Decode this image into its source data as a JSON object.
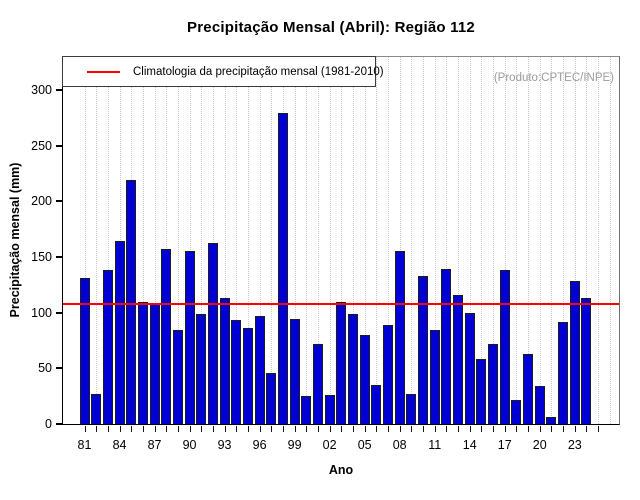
{
  "title": "Precipitação Mensal (Abril): Região 112",
  "watermark": "(Produto:CPTEC/INPE)",
  "legend": {
    "label": "Climatologia da precipitação mensal (1981-2010)",
    "line_color": "#ff0000"
  },
  "axes": {
    "x_label": "Ano",
    "y_label": "Precipitação mensal (mm)",
    "y_ticks": [
      0,
      50,
      100,
      150,
      200,
      250,
      300
    ],
    "x_tick_labels": [
      "81",
      "84",
      "87",
      "90",
      "93",
      "96",
      "99",
      "02",
      "05",
      "08",
      "11",
      "14",
      "17",
      "20",
      "23"
    ]
  },
  "chart_data": {
    "type": "bar",
    "title": "Precipitação Mensal (Abril): Região 112",
    "xlabel": "Ano",
    "ylabel": "Precipitação mensal (mm)",
    "ylim": [
      0,
      330
    ],
    "grid": "vertical-dotted",
    "legend_position": "top-left",
    "bar_color": "#0000d2",
    "bar_border_color": "#1c1c1c",
    "climatology_line_color": "#ff0000",
    "climatology_value": 107,
    "x": [
      1981,
      1982,
      1983,
      1984,
      1985,
      1986,
      1987,
      1988,
      1989,
      1990,
      1991,
      1992,
      1993,
      1994,
      1995,
      1996,
      1997,
      1998,
      1999,
      2000,
      2001,
      2002,
      2003,
      2004,
      2005,
      2006,
      2007,
      2008,
      2009,
      2010,
      2011,
      2012,
      2013,
      2014,
      2015,
      2016,
      2017,
      2018,
      2019,
      2020,
      2021,
      2022,
      2023,
      2024
    ],
    "values": [
      131,
      27,
      138,
      164,
      219,
      110,
      108,
      157,
      84,
      155,
      99,
      163,
      113,
      93,
      86,
      97,
      46,
      279,
      94,
      25,
      72,
      26,
      110,
      99,
      80,
      35,
      89,
      155,
      27,
      133,
      84,
      139,
      116,
      100,
      58,
      72,
      138,
      22,
      63,
      34,
      6,
      92,
      128,
      113
    ]
  }
}
